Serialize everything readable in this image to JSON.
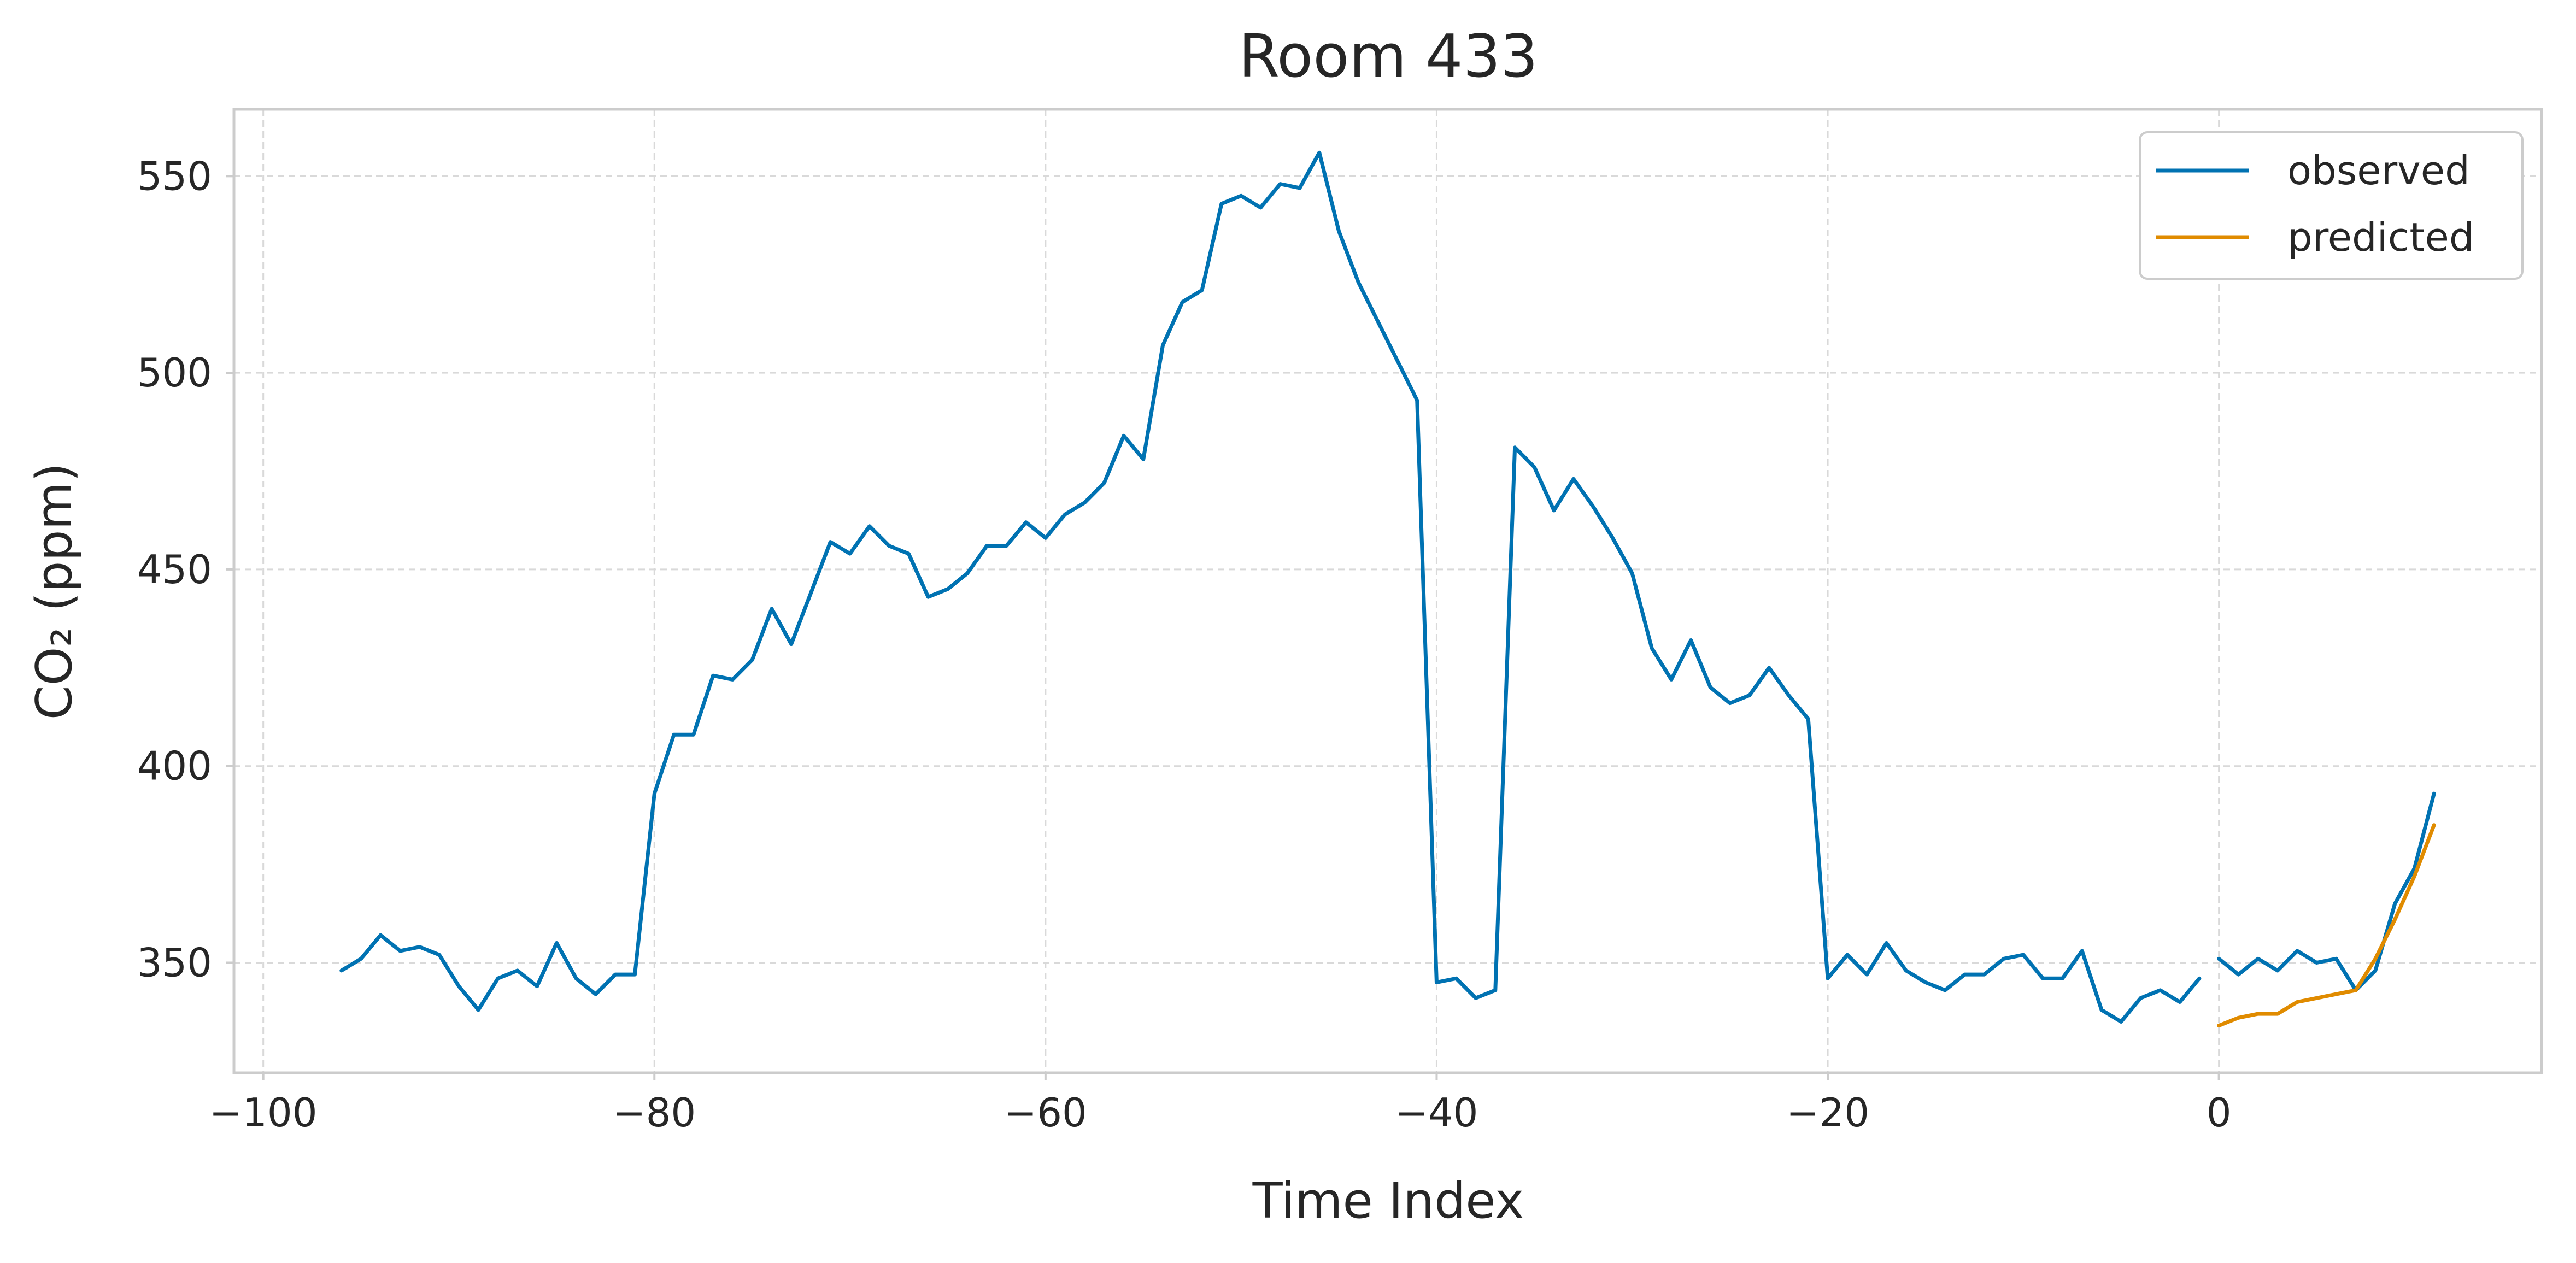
{
  "chart_data": {
    "type": "line",
    "title": "Room 433",
    "xlabel": "Time Index",
    "ylabel": "CO₂ (ppm)",
    "xlim": [
      -101.5,
      16.5
    ],
    "ylim": [
      322,
      567
    ],
    "xticks": [
      -100,
      -80,
      -60,
      -40,
      -20,
      0
    ],
    "xtick_labels": [
      "−100",
      "−80",
      "−60",
      "−40",
      "−20",
      "0"
    ],
    "yticks": [
      350,
      400,
      450,
      500,
      550
    ],
    "ytick_labels": [
      "350",
      "400",
      "450",
      "500",
      "550"
    ],
    "grid": true,
    "legend": {
      "placement": "top-right"
    },
    "series": [
      {
        "name": "observed",
        "color": "#0072b2",
        "segments": [
          {
            "x": [
              -96,
              -95,
              -94,
              -93,
              -92,
              -91,
              -90,
              -89,
              -88,
              -87,
              -86,
              -85,
              -84,
              -83,
              -82,
              -81,
              -80,
              -79,
              -78,
              -77,
              -76,
              -75,
              -74,
              -73,
              -72,
              -71,
              -70,
              -69,
              -68,
              -67,
              -66,
              -65,
              -64,
              -63,
              -62,
              -61,
              -60,
              -59,
              -58,
              -57,
              -56,
              -55,
              -54,
              -53,
              -52,
              -51,
              -50,
              -49,
              -48,
              -47,
              -46,
              -45,
              -44,
              -43,
              -42,
              -41,
              -40,
              -39,
              -38,
              -37,
              -36,
              -35,
              -34,
              -33,
              -32,
              -31,
              -30,
              -29,
              -28,
              -27,
              -26,
              -25,
              -24,
              -23,
              -22,
              -21,
              -20,
              -19,
              -18,
              -17,
              -16,
              -15,
              -14,
              -13,
              -12,
              -11,
              -10,
              -9,
              -8,
              -7,
              -6,
              -5,
              -4,
              -3,
              -2,
              -1
            ],
            "y": [
              348,
              351,
              357,
              353,
              354,
              352,
              344,
              338,
              346,
              348,
              344,
              355,
              346,
              342,
              347,
              347,
              393,
              408,
              408,
              423,
              422,
              427,
              440,
              431,
              444,
              457,
              454,
              461,
              456,
              454,
              443,
              445,
              449,
              456,
              456,
              462,
              458,
              464,
              467,
              472,
              484,
              478,
              507,
              518,
              521,
              543,
              545,
              542,
              548,
              547,
              556,
              536,
              523,
              513,
              503,
              493,
              345,
              346,
              341,
              343,
              481,
              476,
              465,
              473,
              466,
              458,
              449,
              430,
              422,
              432,
              420,
              416,
              418,
              425,
              418,
              412,
              346,
              352,
              347,
              355,
              348,
              345,
              343,
              347,
              347,
              351,
              352,
              346,
              346,
              353,
              338,
              335,
              341,
              343,
              340,
              346
            ]
          },
          {
            "x": [
              0,
              1,
              2,
              3,
              4,
              5,
              6,
              7,
              8,
              9,
              10,
              11
            ],
            "y": [
              351,
              347,
              351,
              348,
              353,
              350,
              351,
              343,
              348,
              365,
              374,
              393
            ]
          }
        ]
      },
      {
        "name": "predicted",
        "color": "#e08b00",
        "segments": [
          {
            "x": [
              0,
              1,
              2,
              3,
              4,
              5,
              6,
              7,
              8,
              9,
              10,
              11
            ],
            "y": [
              334,
              336,
              337,
              337,
              340,
              341,
              342,
              343,
              351,
              361,
              372,
              385
            ]
          }
        ]
      }
    ]
  }
}
